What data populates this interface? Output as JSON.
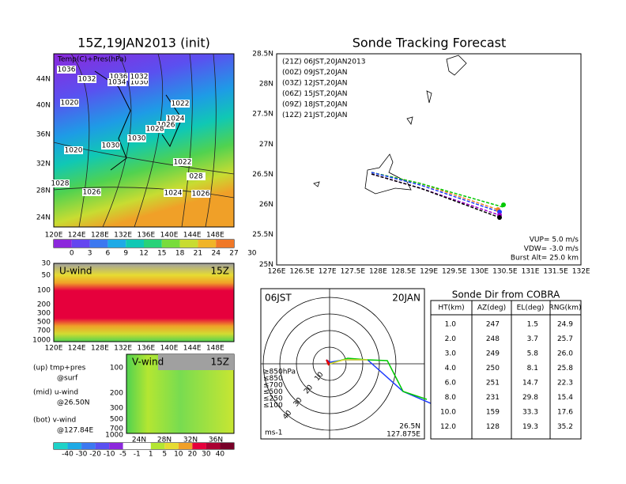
{
  "left_map": {
    "title": "15Z,19JAN2013 (init)",
    "label": "Temp(C)+Pres(hPa)",
    "lat_ticks": [
      "44N",
      "40N",
      "36N",
      "32N",
      "28N",
      "24N"
    ],
    "lon_ticks": [
      "120E",
      "124E",
      "128E",
      "132E",
      "136E",
      "140E",
      "144E",
      "148E"
    ],
    "pressure_labels": [
      "1036",
      "1032",
      "1036",
      "1034",
      "1030",
      "1032",
      "1020",
      "1022",
      "1024",
      "1026",
      "1028",
      "1030",
      "1030",
      "1020",
      "1022",
      "028",
      "1028",
      "1026",
      "1024",
      "1026"
    ],
    "colorbar": [
      "0",
      "3",
      "6",
      "9",
      "12",
      "15",
      "18",
      "21",
      "24",
      "27",
      "30"
    ]
  },
  "u_wind": {
    "title": "U-wind",
    "time": "15Z",
    "yticks": [
      "30",
      "50",
      "100",
      "200",
      "300",
      "500",
      "700",
      "1000"
    ],
    "xticks": [
      "120E",
      "124E",
      "128E",
      "132E",
      "136E",
      "140E",
      "144E",
      "148E"
    ]
  },
  "v_wind": {
    "title": "V-wind",
    "time": "15Z",
    "yticks": [
      "100",
      "200",
      "300",
      "500",
      "700",
      "1000"
    ],
    "xticks": [
      "24N",
      "28N",
      "32N",
      "36N"
    ]
  },
  "notes": [
    "(up) tmp+pres",
    "@surf",
    "(mid) u-wind",
    "@26.50N",
    "(bot) v-wind",
    "@127.84E"
  ],
  "wind_colorbar": [
    "-40",
    "-30",
    "-20",
    "-10",
    "-5",
    "-1",
    "1",
    "5",
    "10",
    "20",
    "30",
    "40"
  ],
  "track": {
    "title": "Sonde Tracking Forecast",
    "lat_ticks": [
      "28.5N",
      "28N",
      "27.5N",
      "27N",
      "26.5N",
      "26N",
      "25.5N",
      "25N"
    ],
    "lon_ticks": [
      "126E",
      "126.5E",
      "127E",
      "127.5E",
      "128E",
      "128.5E",
      "129E",
      "129.5E",
      "130E",
      "130.5E",
      "131E",
      "131.5E",
      "132E"
    ],
    "legend": [
      {
        "label": "(21Z)  06JST,20JAN2013",
        "color": "#000000"
      },
      {
        "label": "(00Z)  09JST,20JAN",
        "color": "#a000c8"
      },
      {
        "label": "(03Z)  12JST,20JAN",
        "color": "#1e3cff"
      },
      {
        "label": "(06Z)  15JST,20JAN",
        "color": "#00c800"
      },
      {
        "label": "(09Z)  18JST,20JAN",
        "color": "#e6dc32"
      },
      {
        "label": "(12Z)  21JST,20JAN",
        "color": "#f08228"
      }
    ],
    "params": [
      "VUP=  5.0  m/s",
      "VDW= -3.0  m/s",
      "Burst Alt=  25.0  km"
    ]
  },
  "polar": {
    "time": "06JST",
    "date": "20JAN",
    "unit": "ms-1",
    "lat": "26.5N",
    "lon": "127.875E",
    "rings": [
      "10",
      "20",
      "30",
      "40"
    ],
    "levels": [
      {
        "label": "≥850hPa",
        "color": "#e60000"
      },
      {
        "label": "≤850",
        "color": "#f08228"
      },
      {
        "label": "≤700",
        "color": "#e6dc32"
      },
      {
        "label": "≤500",
        "color": "#00c800"
      },
      {
        "label": "≤250",
        "color": "#00c8c8"
      },
      {
        "label": "≤100",
        "color": "#1e3cff"
      }
    ]
  },
  "table": {
    "title": "Sonde Dir from COBRA",
    "header": [
      "HT(km)",
      "AZ(deg)",
      "EL(deg)",
      "RNG(km)"
    ],
    "rows": [
      [
        "1.0",
        "247",
        "1.5",
        "24.9"
      ],
      [
        "2.0",
        "248",
        "3.7",
        "25.7"
      ],
      [
        "3.0",
        "249",
        "5.8",
        "26.0"
      ],
      [
        "4.0",
        "250",
        "8.1",
        "25.8"
      ],
      [
        "6.0",
        "251",
        "14.7",
        "22.3"
      ],
      [
        "8.0",
        "231",
        "29.8",
        "15.4"
      ],
      [
        "10.0",
        "159",
        "33.3",
        "17.6"
      ],
      [
        "12.0",
        "128",
        "19.3",
        "35.2"
      ]
    ]
  }
}
